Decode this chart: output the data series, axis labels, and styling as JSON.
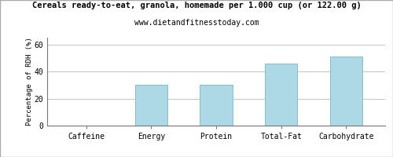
{
  "title": "Cereals ready-to-eat, granola, homemade per 1.000 cup (or 122.00 g)",
  "subtitle": "www.dietandfitnesstoday.com",
  "categories": [
    "Caffeine",
    "Energy",
    "Protein",
    "Total-Fat",
    "Carbohydrate"
  ],
  "values": [
    0,
    30,
    30,
    46,
    51
  ],
  "bar_color": "#add8e6",
  "bar_edge_color": "#88bbcc",
  "ylabel": "Percentage of RDH (%)",
  "ylim": [
    0,
    65
  ],
  "yticks": [
    0,
    20,
    40,
    60
  ],
  "grid_color": "#bbbbbb",
  "background_color": "#ffffff",
  "title_fontsize": 7.5,
  "subtitle_fontsize": 7,
  "ylabel_fontsize": 6.5,
  "tick_fontsize": 7,
  "border_color": "#777777",
  "fig_border_color": "#aaaaaa"
}
